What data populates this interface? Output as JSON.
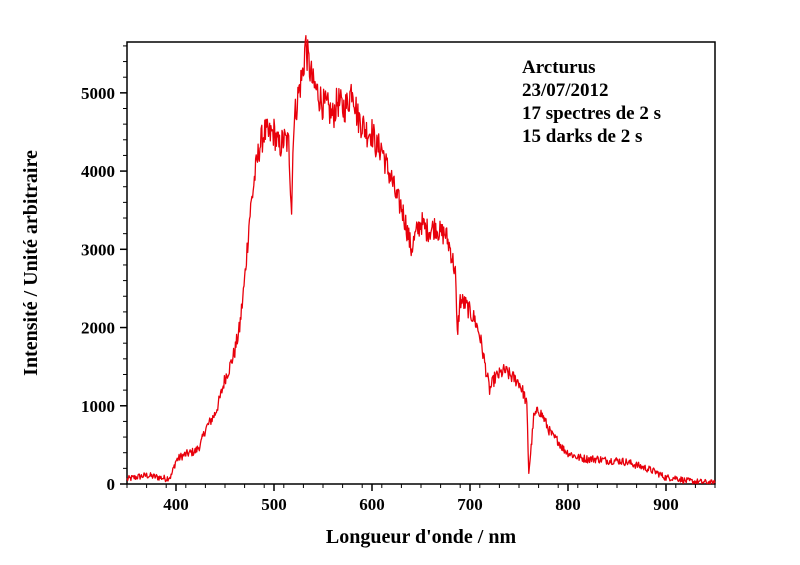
{
  "chart_data": {
    "type": "line",
    "xlabel": "Longueur d'onde / nm",
    "ylabel": "Intensité / Unité arbitraire",
    "xlim": [
      350,
      950
    ],
    "ylim": [
      0,
      5650
    ],
    "x_ticks": [
      400,
      500,
      600,
      700,
      800,
      900
    ],
    "y_ticks": [
      0,
      1000,
      2000,
      3000,
      4000,
      5000
    ],
    "grid": false,
    "line_color": "#e8000b",
    "annotation_lines": [
      "Arcturus",
      "23/07/2012",
      "17 spectres de 2 s",
      "15 darks de 2 s"
    ],
    "series": [
      {
        "x": [
          350,
          360,
          370,
          380,
          390,
          395,
          400,
          405,
          410,
          415,
          420,
          425,
          430,
          435,
          440,
          445,
          450,
          455,
          460,
          465,
          470,
          475,
          480,
          485,
          490,
          495,
          500,
          505,
          510,
          515,
          518,
          520,
          525,
          530,
          532,
          535,
          540,
          545,
          550,
          555,
          560,
          565,
          570,
          575,
          580,
          585,
          590,
          595,
          600,
          605,
          610,
          615,
          620,
          625,
          630,
          635,
          640,
          645,
          650,
          655,
          660,
          665,
          670,
          675,
          680,
          685,
          687,
          690,
          695,
          700,
          705,
          710,
          715,
          720,
          725,
          730,
          735,
          740,
          745,
          750,
          755,
          758,
          760,
          763,
          765,
          770,
          775,
          780,
          785,
          790,
          795,
          800,
          810,
          820,
          830,
          840,
          850,
          860,
          870,
          880,
          890,
          900,
          910,
          920,
          930,
          940,
          950
        ],
        "y": [
          60,
          90,
          110,
          90,
          70,
          100,
          300,
          350,
          380,
          400,
          420,
          500,
          700,
          800,
          900,
          1100,
          1350,
          1500,
          1700,
          2000,
          2600,
          3400,
          3900,
          4300,
          4500,
          4450,
          4500,
          4300,
          4400,
          4350,
          3500,
          4600,
          5000,
          5300,
          5650,
          5400,
          5100,
          5000,
          4850,
          4800,
          4700,
          4900,
          4800,
          4850,
          5100,
          4700,
          4600,
          4500,
          4500,
          4300,
          4300,
          4050,
          3900,
          3650,
          3550,
          3300,
          3000,
          3200,
          3350,
          3250,
          3250,
          3300,
          3200,
          3200,
          3000,
          2700,
          1900,
          2350,
          2300,
          2200,
          2100,
          1900,
          1550,
          1200,
          1350,
          1400,
          1450,
          1400,
          1350,
          1300,
          1150,
          1000,
          150,
          550,
          850,
          950,
          850,
          700,
          600,
          550,
          450,
          400,
          340,
          320,
          320,
          300,
          300,
          280,
          240,
          200,
          150,
          80,
          80,
          40,
          30,
          20,
          10
        ]
      }
    ]
  }
}
